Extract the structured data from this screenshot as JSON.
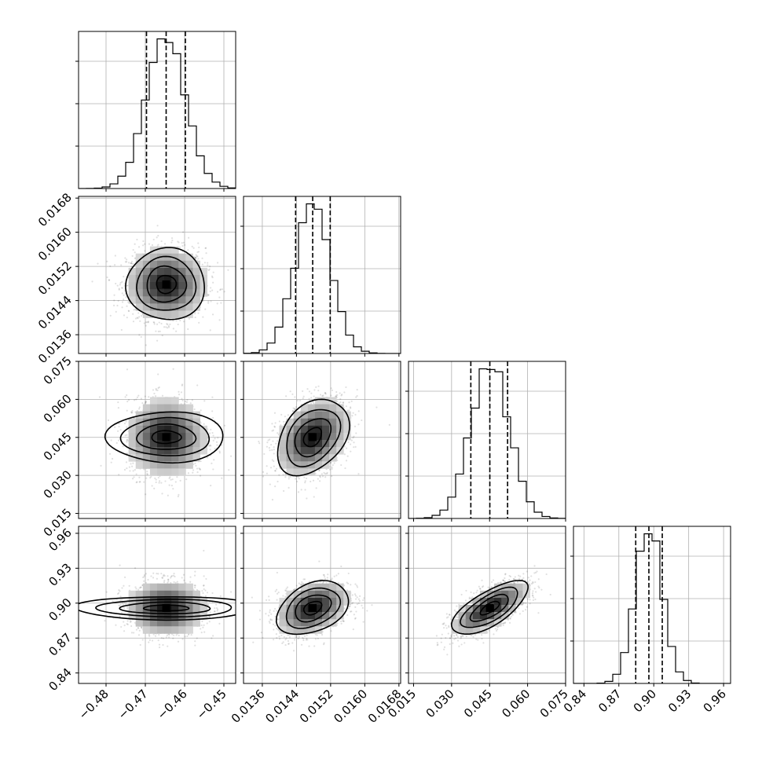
{
  "chart_data": {
    "type": "corner",
    "grid": true,
    "colors": {
      "ink": "#000000",
      "grid": "#b0b0b0",
      "background": "#ffffff"
    },
    "parameters": [
      {
        "range": [
          -0.487,
          -0.447
        ],
        "ticks": [
          -0.48,
          -0.47,
          -0.46,
          -0.45
        ],
        "tick_labels": [
          "−0.48",
          "−0.47",
          "−0.46",
          "−0.45"
        ],
        "mean": -0.4647,
        "sigma": 0.005,
        "quantiles": [
          -0.4697,
          -0.4647,
          -0.4598
        ]
      },
      {
        "range": [
          0.01316,
          0.01684
        ],
        "ticks": [
          0.0136,
          0.0144,
          0.0152,
          0.016,
          0.0168
        ],
        "tick_labels": [
          "0.0136",
          "0.0144",
          "0.0152",
          "0.0160",
          "0.0168"
        ],
        "mean": 0.01478,
        "sigma": 0.00042,
        "quantiles": [
          0.01438,
          0.01478,
          0.01519
        ]
      },
      {
        "range": [
          0.013,
          0.075
        ],
        "ticks": [
          0.015,
          0.03,
          0.045,
          0.06,
          0.075
        ],
        "tick_labels": [
          "0.015",
          "0.030",
          "0.045",
          "0.060",
          "0.075"
        ],
        "mean": 0.0451,
        "sigma": 0.0075,
        "quantiles": [
          0.0376,
          0.0451,
          0.0521
        ]
      },
      {
        "range": [
          0.831,
          0.966
        ],
        "ticks": [
          0.84,
          0.87,
          0.9,
          0.93,
          0.96
        ],
        "tick_labels": [
          "0.84",
          "0.87",
          "0.90",
          "0.93",
          "0.96"
        ],
        "mean": 0.8958,
        "sigma": 0.0115,
        "quantiles": [
          0.8845,
          0.8958,
          0.9073
        ]
      }
    ],
    "correlations": [
      [
        1.0,
        0.0,
        0.0,
        0.0
      ],
      [
        0.0,
        1.0,
        0.35,
        0.35
      ],
      [
        0.0,
        0.35,
        1.0,
        0.7
      ],
      [
        0.0,
        0.35,
        0.7,
        1.0
      ]
    ],
    "histogram_bins": 20,
    "scatter_samples": 1600,
    "contour_levels": [
      "0.5-sigma",
      "1-sigma",
      "1.5-sigma",
      "2-sigma"
    ]
  }
}
